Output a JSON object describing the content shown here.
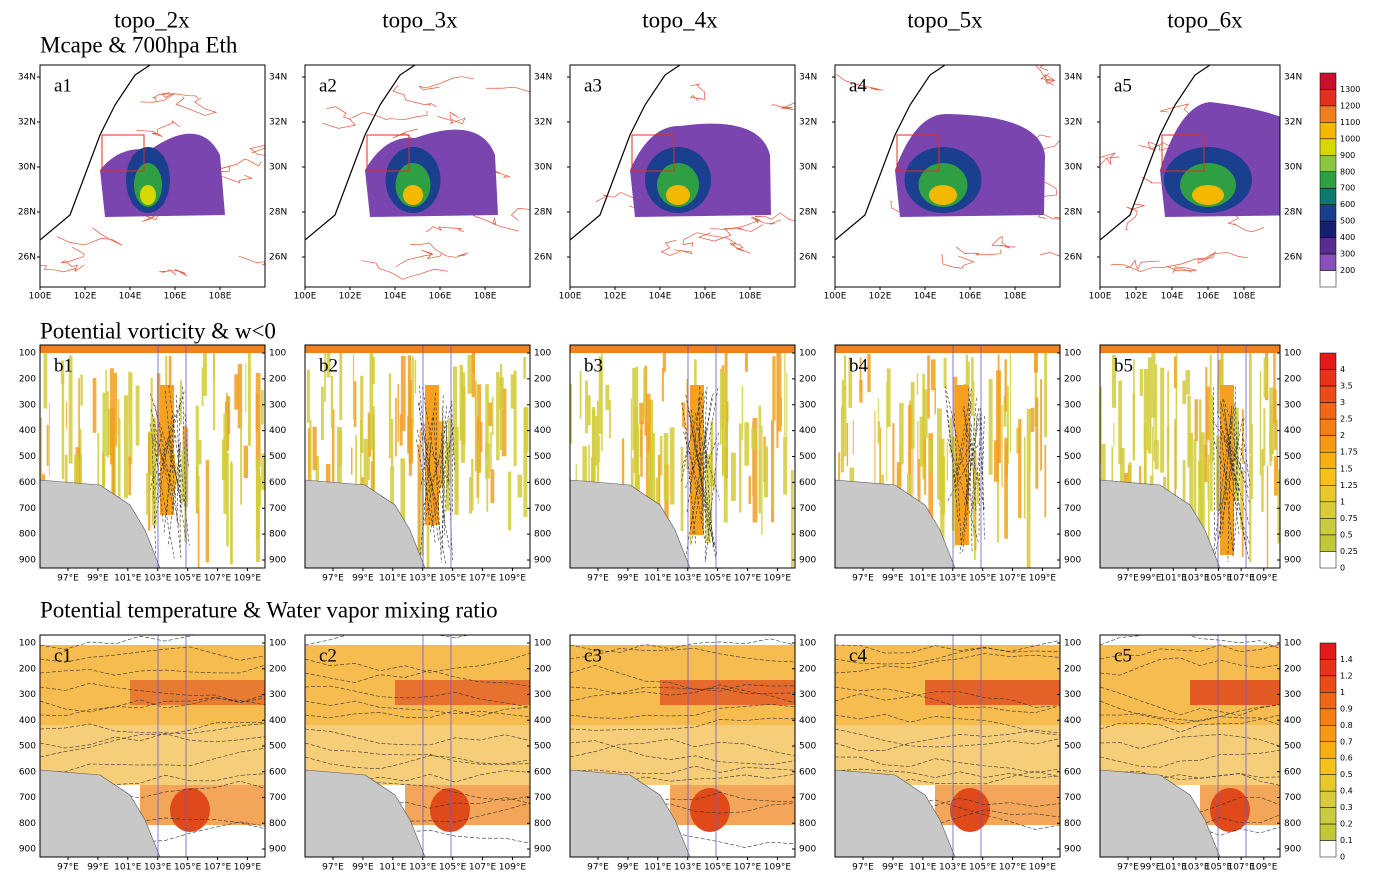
{
  "columns": [
    "topo_2x",
    "topo_3x",
    "topo_4x",
    "topo_5x",
    "topo_6x"
  ],
  "rows": [
    {
      "title": "Mcape & 700hpa Eth",
      "panel_labels": [
        "a1",
        "a2",
        "a3",
        "a4",
        "a5"
      ],
      "yticks": [
        "34N",
        "32N",
        "30N",
        "28N",
        "26N"
      ],
      "xticks": [
        "100E",
        "102E",
        "104E",
        "106E",
        "108E"
      ],
      "colorbar": {
        "labels": [
          1300,
          1200,
          1100,
          1000,
          900,
          800,
          700,
          600,
          500,
          400,
          300,
          200
        ],
        "colors": [
          "#c8102e",
          "#e0301e",
          "#f07f1f",
          "#f5b800",
          "#d8d800",
          "#8cc63f",
          "#2ea043",
          "#0e7a6f",
          "#1a3f8f",
          "#14206e",
          "#5b2c8f",
          "#8850b8",
          "#ffffff"
        ]
      }
    },
    {
      "title": "Potential vorticity & w<0",
      "panel_labels": [
        "b1",
        "b2",
        "b3",
        "b4",
        "b5"
      ],
      "yticks": [
        100,
        200,
        300,
        400,
        500,
        600,
        700,
        800,
        900
      ],
      "xticks": [
        "97°E",
        "99°E",
        "101°E",
        "103°E",
        "105°E",
        "107°E",
        "109°E"
      ],
      "colorbar": {
        "labels": [
          4,
          3.5,
          3,
          2.5,
          2,
          1.75,
          1.5,
          1.25,
          1,
          0.75,
          0.5,
          0.25,
          0
        ],
        "colors": [
          "#e31a1c",
          "#e8331a",
          "#ec4d18",
          "#f06616",
          "#f38014",
          "#f59a12",
          "#f7b010",
          "#f5c21a",
          "#e8c92a",
          "#d9cc3a",
          "#c9cc40",
          "#c0c838",
          "#ffffff"
        ]
      }
    },
    {
      "title": "Potential temperature & Water vapor mixing ratio",
      "panel_labels": [
        "c1",
        "c2",
        "c3",
        "c4",
        "c5"
      ],
      "yticks": [
        100,
        200,
        300,
        400,
        500,
        600,
        700,
        800,
        900
      ],
      "xticks": [
        "97°E",
        "99°E",
        "101°E",
        "103°E",
        "105°E",
        "107°E",
        "109°E"
      ],
      "colorbar": {
        "labels": [
          1.4,
          1.2,
          1,
          0.9,
          0.8,
          0.7,
          0.6,
          0.5,
          0.4,
          0.3,
          0.2,
          0.1,
          0
        ],
        "colors": [
          "#e31a1c",
          "#e8331a",
          "#ec4d18",
          "#f06616",
          "#f38014",
          "#f59a12",
          "#f7b010",
          "#f5c21a",
          "#e8c92a",
          "#d9cc3a",
          "#c9cc40",
          "#c0c838",
          "#ffffff"
        ]
      }
    }
  ]
}
